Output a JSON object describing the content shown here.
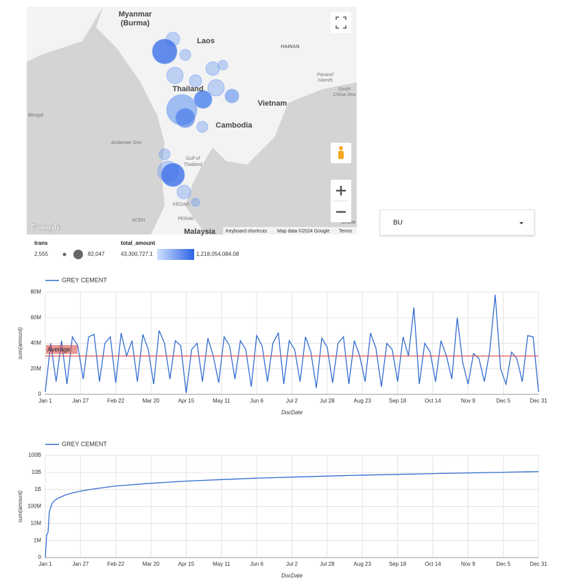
{
  "map": {
    "labels": [
      "Myanmar",
      "(Burma)",
      "Laos",
      "HAINAN",
      "Thailand",
      "Vietnam",
      "Cambodia",
      "Paracel",
      "Islands",
      "South",
      "China Sea",
      "Bengal",
      "Andaman Sea",
      "Gulf of",
      "Thailand",
      "KEDAH",
      "ACEH",
      "PERAK",
      "Malaysia",
      "Brune"
    ],
    "attribution": [
      "Google",
      "Keyboard shortcuts",
      "Map data ©2024 Google",
      "Terms"
    ]
  },
  "map_legend": {
    "size_title": "trans",
    "size_min": "2,555",
    "size_max": "82,047",
    "color_title": "total_amount",
    "color_min": "43,300,727.1",
    "color_max": "1,218,054,084.08"
  },
  "dropdown": {
    "label": "BU"
  },
  "chart_data": [
    {
      "type": "line",
      "x_label": "DocDate",
      "y_label": "sum(amount)",
      "x": [
        0,
        4,
        8,
        12,
        16,
        20,
        24,
        28,
        32,
        36,
        40,
        44,
        48,
        52,
        56,
        60,
        64,
        68,
        72,
        76,
        80,
        84,
        88,
        92,
        96,
        100,
        104,
        108,
        112,
        116,
        120,
        124,
        128,
        132,
        136,
        140,
        144,
        148,
        152,
        156,
        160,
        164,
        168,
        172,
        176,
        180,
        184,
        188,
        192,
        196,
        200,
        204,
        208,
        212,
        216,
        220,
        224,
        228,
        232,
        236,
        240,
        244,
        248,
        252,
        256,
        260,
        264,
        268,
        272,
        276,
        280,
        284,
        288,
        292,
        296,
        300,
        304,
        308,
        312,
        316,
        320,
        324,
        328,
        332,
        336,
        340,
        344,
        348,
        352,
        356,
        360,
        364
      ],
      "series": [
        {
          "name": "GREY CEMENT",
          "color": "#2f6bd0",
          "values": [
            2,
            40,
            10,
            42,
            8,
            45,
            38,
            12,
            45,
            47,
            10,
            40,
            45,
            9,
            48,
            30,
            42,
            10,
            47,
            35,
            8,
            50,
            40,
            12,
            42,
            38,
            1,
            35,
            40,
            10,
            44,
            30,
            9,
            45,
            38,
            12,
            42,
            35,
            6,
            46,
            38,
            10,
            40,
            48,
            8,
            42,
            35,
            10,
            45,
            33,
            5,
            44,
            37,
            9,
            40,
            45,
            8,
            42,
            30,
            10,
            48,
            36,
            6,
            40,
            35,
            10,
            45,
            30,
            68,
            8,
            40,
            33,
            10,
            42,
            30,
            12,
            60,
            25,
            8,
            32,
            28,
            10,
            34,
            78,
            20,
            8,
            33,
            28,
            10,
            46,
            45,
            2
          ]
        }
      ],
      "xlim": [
        0,
        364
      ],
      "xticks": [
        {
          "value": 0,
          "label": "Jan 1"
        },
        {
          "value": 26,
          "label": "Jan 27"
        },
        {
          "value": 52,
          "label": "Feb 22"
        },
        {
          "value": 78,
          "label": "Mar 20"
        },
        {
          "value": 104,
          "label": "Apr 15"
        },
        {
          "value": 130,
          "label": "May 11"
        },
        {
          "value": 156,
          "label": "Jun 6"
        },
        {
          "value": 182,
          "label": "Jul 2"
        },
        {
          "value": 208,
          "label": "Jul 28"
        },
        {
          "value": 234,
          "label": "Aug 23"
        },
        {
          "value": 260,
          "label": "Sep 18"
        },
        {
          "value": 286,
          "label": "Oct 14"
        },
        {
          "value": 312,
          "label": "Nov 9"
        },
        {
          "value": 338,
          "label": "Dec 5"
        },
        {
          "value": 364,
          "label": "Dec 31"
        }
      ],
      "ylim": [
        0,
        80
      ],
      "yticks": [
        0,
        {
          "value": 20,
          "label": "20M"
        },
        {
          "value": 40,
          "label": "40M"
        },
        {
          "value": 60,
          "label": "60M"
        },
        {
          "value": 80,
          "label": "80M"
        }
      ],
      "grid": true,
      "reference_line": {
        "label": "Average",
        "value": 30,
        "color": "#d9534f"
      }
    },
    {
      "type": "line",
      "x_label": "DocDate",
      "y_label": "sum(amount)",
      "log_scale": true,
      "x": [
        0,
        1,
        2,
        3,
        5,
        7,
        10,
        15,
        20,
        26,
        35,
        52,
        78,
        104,
        130,
        156,
        182,
        208,
        234,
        260,
        286,
        312,
        338,
        364
      ],
      "series": [
        {
          "name": "GREY CEMENT",
          "color": "#2f6bd0",
          "values": [
            0,
            2000000,
            3000000,
            50000000,
            150000000,
            230000000,
            320000000,
            480000000,
            620000000,
            800000000,
            1050000000,
            1600000000,
            2300000000,
            3100000000,
            3800000000,
            4600000000,
            5300000000,
            6100000000,
            6900000000,
            7700000000,
            8500000000,
            9300000000,
            10200000000,
            11200000000
          ]
        }
      ],
      "xlim": [
        0,
        364
      ],
      "xticks": [
        {
          "value": 0,
          "label": "Jan 1"
        },
        {
          "value": 26,
          "label": "Jan 27"
        },
        {
          "value": 52,
          "label": "Feb 22"
        },
        {
          "value": 78,
          "label": "Mar 20"
        },
        {
          "value": 104,
          "label": "Apr 15"
        },
        {
          "value": 130,
          "label": "May 11"
        },
        {
          "value": 156,
          "label": "Jun 6"
        },
        {
          "value": 182,
          "label": "Jul 2"
        },
        {
          "value": 208,
          "label": "Jul 28"
        },
        {
          "value": 234,
          "label": "Aug 23"
        },
        {
          "value": 260,
          "label": "Sep 18"
        },
        {
          "value": 286,
          "label": "Oct 14"
        },
        {
          "value": 312,
          "label": "Nov 9"
        },
        {
          "value": 338,
          "label": "Dec 5"
        },
        {
          "value": 364,
          "label": "Dec 31"
        }
      ],
      "ylim": [
        100000,
        100000000000
      ],
      "yticks": [
        0,
        {
          "value": 1000000,
          "label": "1M"
        },
        {
          "value": 10000000,
          "label": "10M"
        },
        {
          "value": 100000000,
          "label": "100M"
        },
        {
          "value": 1000000000,
          "label": "1B"
        },
        {
          "value": 10000000000,
          "label": "10B"
        },
        {
          "value": 100000000000,
          "label": "100B"
        }
      ],
      "grid": true
    }
  ]
}
